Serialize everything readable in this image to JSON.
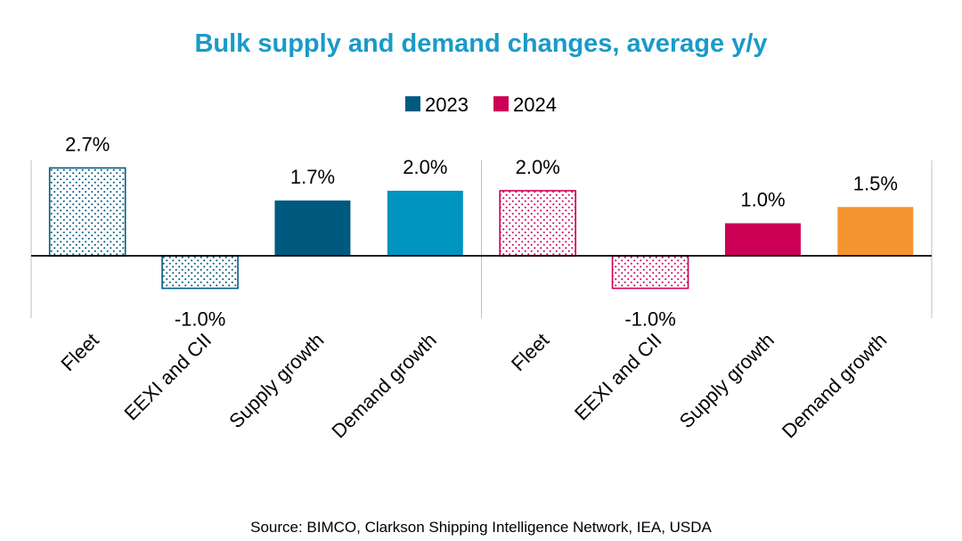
{
  "chart_data": {
    "type": "bar",
    "title": "Bulk supply and demand changes, average y/y",
    "source": "Source: BIMCO, Clarkson Shipping Intelligence Network, IEA, USDA",
    "legend": [
      {
        "label": "2023",
        "color": "#005A80"
      },
      {
        "label": "2024",
        "color": "#CC0055"
      }
    ],
    "unit": "%",
    "ylim": [
      -1.8,
      3.0
    ],
    "groups": [
      {
        "series": "2023",
        "bars": [
          {
            "category": "Fleet",
            "value": 2.7,
            "label": "2.7%",
            "style": "dotted",
            "color": "#005A80"
          },
          {
            "category": "EEXI and CII",
            "value": -1.0,
            "label": "-1.0%",
            "style": "dotted",
            "color": "#005A80"
          },
          {
            "category": "Supply growth",
            "value": 1.7,
            "label": "1.7%",
            "style": "solid",
            "color": "#005A80"
          },
          {
            "category": "Demand growth",
            "value": 2.0,
            "label": "2.0%",
            "style": "solid",
            "color": "#0094C0"
          }
        ]
      },
      {
        "series": "2024",
        "bars": [
          {
            "category": "Fleet",
            "value": 2.0,
            "label": "2.0%",
            "style": "dotted",
            "color": "#CC0055"
          },
          {
            "category": "EEXI and CII",
            "value": -1.0,
            "label": "-1.0%",
            "style": "dotted",
            "color": "#CC0055"
          },
          {
            "category": "Supply growth",
            "value": 1.0,
            "label": "1.0%",
            "style": "solid",
            "color": "#CC0055"
          },
          {
            "category": "Demand growth",
            "value": 1.5,
            "label": "1.5%",
            "style": "solid",
            "color": "#F59530"
          }
        ]
      }
    ],
    "grid": false,
    "legend_position": "top-center",
    "colors": {
      "title": "#1A9AC8",
      "axis": "#000000",
      "group_divider": "#BFBFBF"
    }
  }
}
